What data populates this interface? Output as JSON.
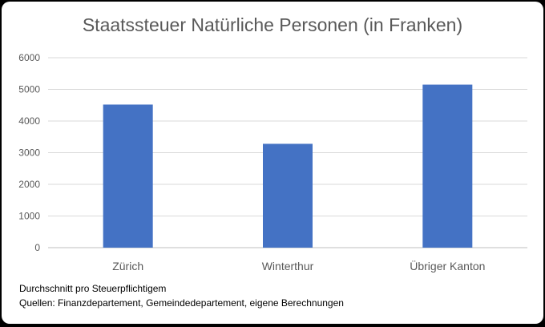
{
  "chart_data": {
    "type": "bar",
    "title": "Staatssteuer Natürliche Personen (in Franken)",
    "categories": [
      "Zürich",
      "Winterthur",
      "Übriger Kanton"
    ],
    "values": [
      4520,
      3280,
      5150
    ],
    "ylim": [
      0,
      6000
    ],
    "yticks": [
      0,
      1000,
      2000,
      3000,
      4000,
      5000,
      6000
    ],
    "xlabel": "",
    "ylabel": "",
    "grid": true,
    "legend": "none",
    "bar_color": "#4472C4"
  },
  "footnotes": {
    "line1": "Durchschnitt pro Steuerpflichtigem",
    "line2": "Quellen: Finanzdepartement, Gemeindedepartement, eigene Berechnungen"
  }
}
